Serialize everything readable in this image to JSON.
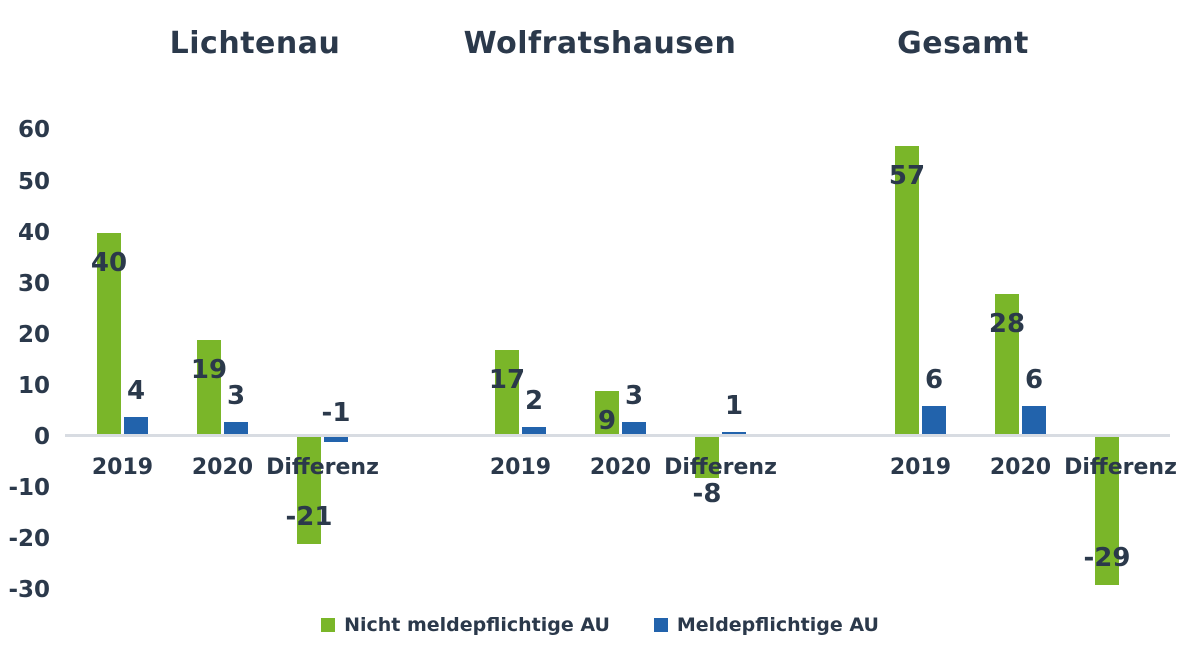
{
  "chart_data": {
    "type": "bar",
    "title": "",
    "xlabel": "",
    "ylabel": "",
    "ylim": [
      -30,
      60
    ],
    "y_ticks": [
      60,
      50,
      40,
      30,
      20,
      10,
      0,
      -10,
      -20,
      -30
    ],
    "grid": false,
    "legend_position": "bottom",
    "groups": [
      {
        "title": "Lichtenau",
        "categories": [
          "2019",
          "2020",
          "Differenz"
        ],
        "series": [
          {
            "name": "Nicht meldepflichtige AU",
            "values": [
              40,
              19,
              -21
            ]
          },
          {
            "name": "Meldepflichtige AU",
            "values": [
              4,
              3,
              -1
            ]
          }
        ]
      },
      {
        "title": "Wolfratshausen",
        "categories": [
          "2019",
          "2020",
          "Differenz"
        ],
        "series": [
          {
            "name": "Nicht meldepflichtige AU",
            "values": [
              17,
              9,
              -8
            ]
          },
          {
            "name": "Meldepflichtige AU",
            "values": [
              2,
              3,
              1
            ]
          }
        ]
      },
      {
        "title": "Gesamt",
        "categories": [
          "2019",
          "2020",
          "Differenz"
        ],
        "series": [
          {
            "name": "Nicht meldepflichtige AU",
            "values": [
              57,
              28,
              -29
            ]
          },
          {
            "name": "Meldepflichtige AU",
            "values": [
              6,
              6,
              null
            ]
          }
        ]
      }
    ],
    "colors": {
      "green": "#7AB629",
      "blue": "#2263AC",
      "text": "#2B394B",
      "axis_line": "#D8DCE2"
    }
  },
  "legend": {
    "items": [
      {
        "label": "Nicht meldepflichtige AU",
        "color_key": "green"
      },
      {
        "label": "Meldepflichtige AU",
        "color_key": "blue"
      }
    ]
  }
}
